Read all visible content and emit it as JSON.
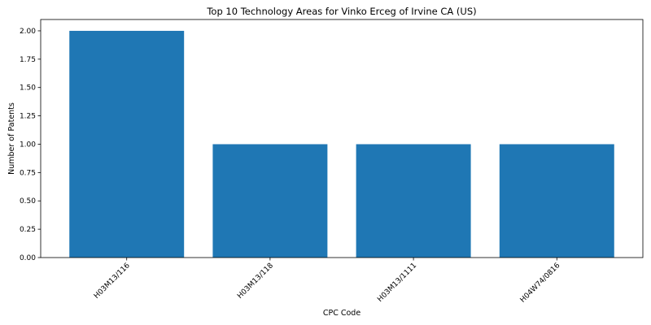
{
  "chart_data": {
    "type": "bar",
    "title": "Top 10 Technology Areas for Vinko Erceg of Irvine CA (US)",
    "xlabel": "CPC Code",
    "ylabel": "Number of Patents",
    "categories": [
      "H03M13/116",
      "H03M13/118",
      "H03M13/1111",
      "H04W74/0816"
    ],
    "values": [
      2,
      1,
      1,
      1
    ],
    "ylim": [
      0,
      2.1
    ],
    "yticks": [
      "0.00",
      "0.25",
      "0.50",
      "0.75",
      "1.00",
      "1.25",
      "1.50",
      "1.75",
      "2.00"
    ],
    "bar_color": "#1f77b4",
    "grid": false
  }
}
